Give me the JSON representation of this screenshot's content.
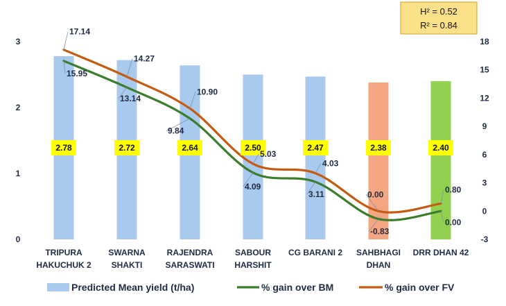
{
  "chart_data": {
    "type": "bar",
    "categories": [
      [
        "TRIPURA",
        "HAKUCHUK 2"
      ],
      [
        "SWARNA",
        "SHAKTI"
      ],
      [
        "RAJENDRA",
        "SARASWATI"
      ],
      [
        "SABOUR",
        "HARSHIT"
      ],
      [
        "CG BARANI 2"
      ],
      [
        "SAHBHAGI",
        "DHAN"
      ],
      [
        "DRR DHAN 42"
      ]
    ],
    "series": [
      {
        "name": "Predicted Mean yield (t/ha)",
        "type": "bar",
        "axis": "left",
        "values": [
          2.78,
          2.72,
          2.64,
          2.5,
          2.47,
          2.38,
          2.4
        ],
        "labels": [
          "2.78",
          "2.72",
          "2.64",
          "2.50",
          "2.47",
          "2.38",
          "2.40"
        ],
        "colors": [
          "#a9c9ee",
          "#a9c9ee",
          "#a9c9ee",
          "#a9c9ee",
          "#a9c9ee",
          "#f4a582",
          "#92d050"
        ]
      },
      {
        "name": "% gain over BM",
        "type": "line",
        "axis": "right",
        "color": "#3a7d2c",
        "values": [
          15.95,
          13.14,
          9.84,
          4.09,
          3.11,
          -0.83,
          0.0
        ],
        "labels": [
          "15.95",
          "13.14",
          "9.84",
          "4.09",
          "3.11",
          "-0.83",
          "0.00"
        ]
      },
      {
        "name": "% gain over FV",
        "type": "line",
        "axis": "right",
        "color": "#c55a11",
        "values": [
          17.14,
          14.27,
          10.9,
          5.03,
          4.03,
          0.0,
          0.8
        ],
        "labels": [
          "17.14",
          "14.27",
          "10.90",
          "5.03",
          "4.03",
          "0.00",
          "0.80"
        ]
      }
    ],
    "y_left": {
      "min": 0,
      "max": 3,
      "ticks": [
        "0",
        "1",
        "2",
        "3"
      ]
    },
    "y_right": {
      "min": -3,
      "max": 18,
      "ticks": [
        "-3",
        "0",
        "3",
        "6",
        "9",
        "12",
        "15",
        "18"
      ]
    },
    "grid": false,
    "legend": "bottom",
    "annotation": {
      "h2": "0.52",
      "r2": "0.84",
      "h2_label": "H² = ",
      "r2_label": "R² = ",
      "fill": "#fbe08a",
      "border": "#c9a227"
    }
  }
}
